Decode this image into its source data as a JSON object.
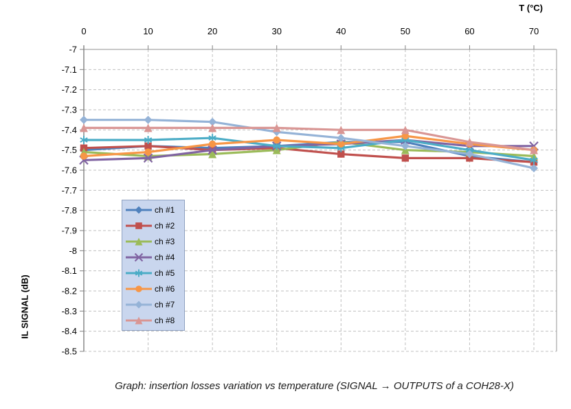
{
  "header": {
    "axis_top_label": "T (°C)"
  },
  "caption": "Graph: insertion losses variation vs temperature (SIGNAL → OUTPUTS of a COH28-X)",
  "chart_data": {
    "type": "line",
    "title": "",
    "xlabel": "T (°C)",
    "ylabel": "IL SIGNAL (dB)",
    "x": [
      0,
      10,
      20,
      30,
      40,
      50,
      60,
      70
    ],
    "x_tick_labels": [
      "0",
      "10",
      "20",
      "30",
      "40",
      "50",
      "60",
      "70"
    ],
    "xlim": [
      0,
      70
    ],
    "ylim": [
      -8.5,
      -7
    ],
    "y_ticks": [
      -7,
      -7.1,
      -7.2,
      -7.3,
      -7.4,
      -7.5,
      -7.6,
      -7.7,
      -7.8,
      -7.9,
      -8,
      -8.1,
      -8.2,
      -8.3,
      -8.4,
      -8.5
    ],
    "y_tick_labels": [
      "-7",
      "-7.1",
      "-7.2",
      "-7.3",
      "-7.4",
      "-7.5",
      "-7.6",
      "-7.7",
      "-7.8",
      "-7.9",
      "-8",
      "-8.1",
      "-8.2",
      "-8.3",
      "-8.4",
      "-8.5"
    ],
    "grid": "dashed",
    "legend_position": "middle-left",
    "series": [
      {
        "name": "ch #1",
        "color": "#4F81BD",
        "marker": "diamond",
        "values": [
          -7.5,
          -7.48,
          -7.49,
          -7.48,
          -7.46,
          -7.46,
          -7.53,
          -7.56
        ]
      },
      {
        "name": "ch #2",
        "color": "#C0504D",
        "marker": "square",
        "values": [
          -7.49,
          -7.48,
          -7.5,
          -7.49,
          -7.52,
          -7.54,
          -7.54,
          -7.56
        ]
      },
      {
        "name": "ch #3",
        "color": "#9BBB59",
        "marker": "triangle",
        "values": [
          -7.51,
          -7.53,
          -7.52,
          -7.5,
          -7.46,
          -7.5,
          -7.51,
          -7.53
        ]
      },
      {
        "name": "ch #4",
        "color": "#8064A2",
        "marker": "x",
        "values": [
          -7.55,
          -7.54,
          -7.5,
          -7.48,
          -7.47,
          -7.45,
          -7.48,
          -7.48
        ]
      },
      {
        "name": "ch #5",
        "color": "#4BACC6",
        "marker": "asterisk",
        "values": [
          -7.45,
          -7.45,
          -7.44,
          -7.48,
          -7.49,
          -7.45,
          -7.5,
          -7.55
        ]
      },
      {
        "name": "ch #6",
        "color": "#F79646",
        "marker": "circle",
        "values": [
          -7.53,
          -7.51,
          -7.47,
          -7.45,
          -7.47,
          -7.43,
          -7.47,
          -7.5
        ]
      },
      {
        "name": "ch #7",
        "color": "#95B3D7",
        "marker": "diamond",
        "values": [
          -7.35,
          -7.35,
          -7.36,
          -7.41,
          -7.44,
          -7.48,
          -7.52,
          -7.59
        ]
      },
      {
        "name": "ch #8",
        "color": "#D99694",
        "marker": "triangle",
        "values": [
          -7.39,
          -7.39,
          -7.39,
          -7.39,
          -7.4,
          -7.4,
          -7.46,
          -7.5
        ]
      }
    ],
    "style_colors": {
      "grid": "#BFBFBF",
      "axis": "#7F7F7F",
      "frame": "#A6A6A6",
      "tick_text": "#000000",
      "legend_bg": "#C9D6EE",
      "legend_border": "#8EA0C0"
    }
  }
}
